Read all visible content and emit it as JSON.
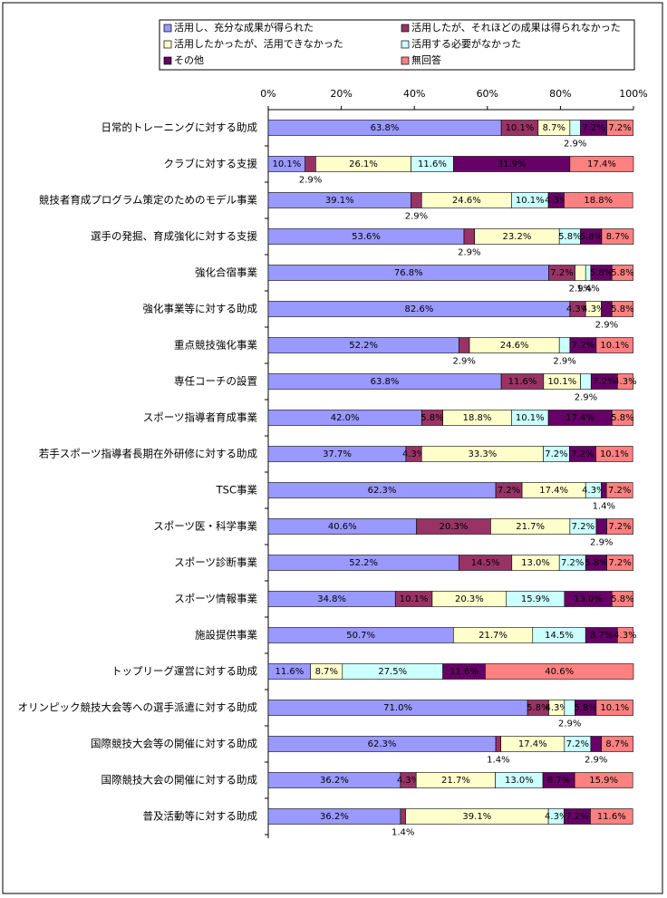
{
  "chart_data": {
    "type": "stacked_bar_horizontal",
    "categories": [
      "日常的トレーニングに対する助成",
      "クラブに対する支援",
      "競技者育成プログラム策定のためのモデル事業",
      "選手の発掘、育成強化に対する支援",
      "強化合宿事業",
      "強化事業等に対する助成",
      "重点競技強化事業",
      "専任コーチの設置",
      "スポーツ指導者育成事業",
      "若手スポーツ指導者長期在外研修に対する助成",
      "TSC事業",
      "スポーツ医・科学事業",
      "スポーツ診断事業",
      "スポーツ情報事業",
      "施設提供事業",
      "トップリーグ運営に対する助成",
      "オリンピック競技大会等への選手派遣に対する助成",
      "国際競技大会等の開催に対する助成",
      "国際競技大会の開催に対する助成",
      "普及活動等に対する助成"
    ],
    "series": [
      {
        "name": "活用し、充分な成果が得られた",
        "color": "#9999ff",
        "values": [
          63.8,
          10.1,
          39.1,
          53.6,
          76.8,
          82.6,
          52.2,
          63.8,
          42.0,
          37.7,
          62.3,
          40.6,
          52.2,
          34.8,
          50.7,
          11.6,
          71.0,
          62.3,
          36.2,
          36.2
        ],
        "value_labels": [
          "63.8%",
          "10.1%",
          "39.1%",
          "53.6%",
          "76.8%",
          "82.6%",
          "52.2%",
          "63.8%",
          "42.0%",
          "37.7%",
          "62.3%",
          "40.6%",
          "52.2%",
          "34.8%",
          "50.7%",
          "11.6%",
          "71.0%",
          "62.3%",
          "36.2%",
          "36.2%"
        ]
      },
      {
        "name": "活用したが、それほどの成果は得られなかった",
        "color": "#993366",
        "values": [
          10.1,
          2.9,
          2.9,
          2.9,
          7.2,
          4.3,
          2.9,
          11.6,
          5.8,
          4.3,
          7.2,
          20.3,
          14.5,
          10.1,
          0,
          0,
          5.8,
          1.4,
          4.3,
          1.4
        ],
        "value_labels": [
          "10.1%",
          "2.9%",
          "2.9%",
          "2.9%",
          "7.2%",
          "4.3%",
          "2.9%",
          "11.6%",
          "5.8%",
          "4.3%",
          "7.2%",
          "20.3%",
          "14.5%",
          "10.1%",
          null,
          null,
          "5.8%",
          "1.4%",
          "4.3%",
          "1.4%"
        ]
      },
      {
        "name": "活用したかったが、活用できなかった",
        "color": "#ffffcc",
        "values": [
          8.7,
          26.1,
          24.6,
          23.2,
          2.9,
          4.3,
          24.6,
          10.1,
          18.8,
          33.3,
          17.4,
          21.7,
          13.0,
          20.3,
          21.7,
          8.7,
          4.3,
          17.4,
          21.7,
          39.1
        ],
        "value_labels": [
          "8.7%",
          "26.1%",
          "24.6%",
          "23.2%",
          "2.9%",
          "4.3%",
          "24.6%",
          "10.1%",
          "18.8%",
          "33.3%",
          "17.4%",
          "21.7%",
          "13.0%",
          "20.3%",
          "21.7%",
          "8.7%",
          "4.3%",
          "17.4%",
          "21.7%",
          "39.1%"
        ]
      },
      {
        "name": "活用する必要がなかった",
        "color": "#ccffff",
        "values": [
          2.9,
          11.6,
          10.1,
          5.8,
          1.4,
          0,
          2.9,
          2.9,
          10.1,
          7.2,
          4.3,
          7.2,
          7.2,
          15.9,
          14.5,
          27.5,
          2.9,
          7.2,
          13.0,
          4.3
        ],
        "value_labels": [
          "2.9%",
          "11.6%",
          "10.1%",
          "5.8%",
          "1.4%",
          null,
          "2.9%",
          "2.9%",
          "10.1%",
          "7.2%",
          "4.3%",
          "7.2%",
          "7.2%",
          "15.9%",
          "14.5%",
          "27.5%",
          "2.9%",
          "7.2%",
          "13.0%",
          "4.3%"
        ]
      },
      {
        "name": "その他",
        "color": "#660066",
        "values": [
          7.2,
          31.9,
          4.3,
          5.8,
          5.8,
          2.9,
          7.2,
          7.2,
          17.4,
          7.2,
          1.4,
          2.9,
          5.8,
          13.0,
          8.7,
          11.6,
          5.8,
          2.9,
          8.7,
          7.2
        ],
        "value_labels": [
          "7.2%",
          "31.9%",
          "4.3%",
          "5.8%",
          "5.8%",
          "2.9%",
          "7.2%",
          "7.2%",
          "17.4%",
          "7.2%",
          "1.4%",
          "2.9%",
          "5.8%",
          "13.0%",
          "8.7%",
          "11.6%",
          "5.8%",
          "2.9%",
          "8.7%",
          "7.2%"
        ]
      },
      {
        "name": "無回答",
        "color": "#ff8080",
        "values": [
          7.2,
          17.4,
          18.8,
          8.7,
          5.8,
          5.8,
          10.1,
          4.3,
          5.8,
          10.1,
          7.2,
          7.2,
          7.2,
          5.8,
          4.3,
          40.6,
          10.1,
          8.7,
          15.9,
          11.6
        ],
        "value_labels": [
          "7.2%",
          "17.4%",
          "18.8%",
          "8.7%",
          "5.8%",
          "5.8%",
          "10.1%",
          "4.3%",
          "5.8%",
          "10.1%",
          "7.2%",
          "7.2%",
          "7.2%",
          "5.8%",
          "4.3%",
          "40.6%",
          "10.1%",
          "8.7%",
          "15.9%",
          "11.6%"
        ]
      }
    ],
    "xlim": [
      0,
      100
    ],
    "xticks": [
      {
        "value": 0,
        "label": "0%"
      },
      {
        "value": 20,
        "label": "20%"
      },
      {
        "value": 40,
        "label": "40%"
      },
      {
        "value": 60,
        "label": "60%"
      },
      {
        "value": 80,
        "label": "80%"
      },
      {
        "value": 100,
        "label": "100%"
      }
    ],
    "legend": "top"
  }
}
